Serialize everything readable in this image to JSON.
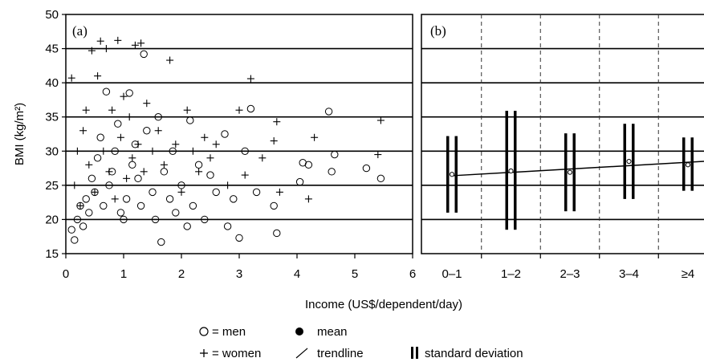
{
  "chart_data": [
    {
      "panel_label": "(a)",
      "type": "scatter",
      "xlabel": "Income (US$/dependent/day)",
      "ylabel": "BMI (kg/m²)",
      "xlim": [
        0,
        6
      ],
      "ylim": [
        15,
        50
      ],
      "x_ticks": [
        "0",
        "1",
        "2",
        "3",
        "4",
        "5",
        "6"
      ],
      "y_ticks": [
        "15",
        "20",
        "25",
        "30",
        "35",
        "40",
        "45",
        "50"
      ],
      "grid": "horizontal",
      "series": [
        {
          "name": "men",
          "marker": "circle",
          "points": [
            [
              0.1,
              18.5
            ],
            [
              0.15,
              17
            ],
            [
              0.2,
              20
            ],
            [
              0.25,
              22
            ],
            [
              0.3,
              19
            ],
            [
              0.35,
              23
            ],
            [
              0.4,
              21
            ],
            [
              0.45,
              26
            ],
            [
              0.5,
              24
            ],
            [
              0.55,
              29
            ],
            [
              0.6,
              32
            ],
            [
              0.65,
              22
            ],
            [
              0.7,
              38.7
            ],
            [
              0.75,
              25
            ],
            [
              0.8,
              27
            ],
            [
              0.85,
              30
            ],
            [
              0.9,
              34
            ],
            [
              0.95,
              21
            ],
            [
              1.0,
              20
            ],
            [
              1.05,
              23
            ],
            [
              1.1,
              38.5
            ],
            [
              1.15,
              28
            ],
            [
              1.2,
              31
            ],
            [
              1.25,
              26
            ],
            [
              1.3,
              22
            ],
            [
              1.35,
              44.2
            ],
            [
              1.4,
              33
            ],
            [
              1.5,
              24
            ],
            [
              1.55,
              20
            ],
            [
              1.6,
              35
            ],
            [
              1.65,
              16.7
            ],
            [
              1.7,
              27
            ],
            [
              1.8,
              23
            ],
            [
              1.85,
              30
            ],
            [
              1.9,
              21
            ],
            [
              2.0,
              25
            ],
            [
              2.1,
              19
            ],
            [
              2.15,
              34.5
            ],
            [
              2.2,
              22
            ],
            [
              2.3,
              28
            ],
            [
              2.4,
              20
            ],
            [
              2.5,
              26.5
            ],
            [
              2.6,
              24
            ],
            [
              2.75,
              32.5
            ],
            [
              2.8,
              19
            ],
            [
              2.9,
              23
            ],
            [
              3.0,
              17.3
            ],
            [
              3.1,
              30
            ],
            [
              3.2,
              36.2
            ],
            [
              3.3,
              24
            ],
            [
              3.6,
              22
            ],
            [
              3.65,
              18
            ],
            [
              4.05,
              25.5
            ],
            [
              4.1,
              28.3
            ],
            [
              4.2,
              28
            ],
            [
              4.55,
              35.8
            ],
            [
              4.6,
              27
            ],
            [
              4.65,
              29.5
            ],
            [
              5.2,
              27.5
            ],
            [
              5.45,
              26
            ]
          ]
        },
        {
          "name": "women",
          "marker": "plus",
          "points": [
            [
              0.1,
              40.7
            ],
            [
              0.15,
              25
            ],
            [
              0.2,
              30
            ],
            [
              0.25,
              22
            ],
            [
              0.3,
              33
            ],
            [
              0.35,
              36
            ],
            [
              0.4,
              28
            ],
            [
              0.45,
              44.7
            ],
            [
              0.5,
              24
            ],
            [
              0.55,
              41
            ],
            [
              0.6,
              46.1
            ],
            [
              0.65,
              30
            ],
            [
              0.7,
              45
            ],
            [
              0.75,
              27
            ],
            [
              0.8,
              36
            ],
            [
              0.85,
              23
            ],
            [
              0.9,
              46.2
            ],
            [
              0.95,
              32
            ],
            [
              1.0,
              38
            ],
            [
              1.05,
              26
            ],
            [
              1.1,
              35
            ],
            [
              1.15,
              29
            ],
            [
              1.2,
              45.5
            ],
            [
              1.25,
              31
            ],
            [
              1.3,
              45.8
            ],
            [
              1.35,
              27
            ],
            [
              1.4,
              37
            ],
            [
              1.5,
              30
            ],
            [
              1.6,
              33
            ],
            [
              1.7,
              28
            ],
            [
              1.8,
              43.3
            ],
            [
              1.9,
              31
            ],
            [
              2.0,
              24
            ],
            [
              2.1,
              36
            ],
            [
              2.2,
              30
            ],
            [
              2.3,
              27
            ],
            [
              2.4,
              32
            ],
            [
              2.5,
              29
            ],
            [
              2.6,
              31
            ],
            [
              2.8,
              25
            ],
            [
              3.0,
              36
            ],
            [
              3.1,
              26.5
            ],
            [
              3.2,
              40.6
            ],
            [
              3.4,
              29
            ],
            [
              3.6,
              31.5
            ],
            [
              3.65,
              34.3
            ],
            [
              3.7,
              24
            ],
            [
              4.2,
              23
            ],
            [
              4.3,
              32
            ],
            [
              5.4,
              29.5
            ],
            [
              5.45,
              34.5
            ]
          ]
        }
      ]
    },
    {
      "panel_label": "(b)",
      "type": "errorbar",
      "categories": [
        "0–1",
        "1–2",
        "2–3",
        "3–4",
        "≥4"
      ],
      "ylim": [
        15,
        50
      ],
      "grid": "horizontal",
      "mean": [
        26.6,
        27.1,
        26.9,
        28.5,
        28.0
      ],
      "sd_lower": [
        21.0,
        18.5,
        21.2,
        23.0,
        24.2
      ],
      "sd_upper": [
        32.2,
        35.9,
        32.6,
        34.0,
        32.0
      ],
      "trendline": {
        "start": 26.4,
        "end": 28.5
      }
    }
  ],
  "legend": {
    "men_symbol": "○",
    "men_text": "= men",
    "women_symbol": "+",
    "women_text": "= women",
    "mean_text": "mean",
    "trend_text": "trendline",
    "sd_text": "standard deviation"
  }
}
